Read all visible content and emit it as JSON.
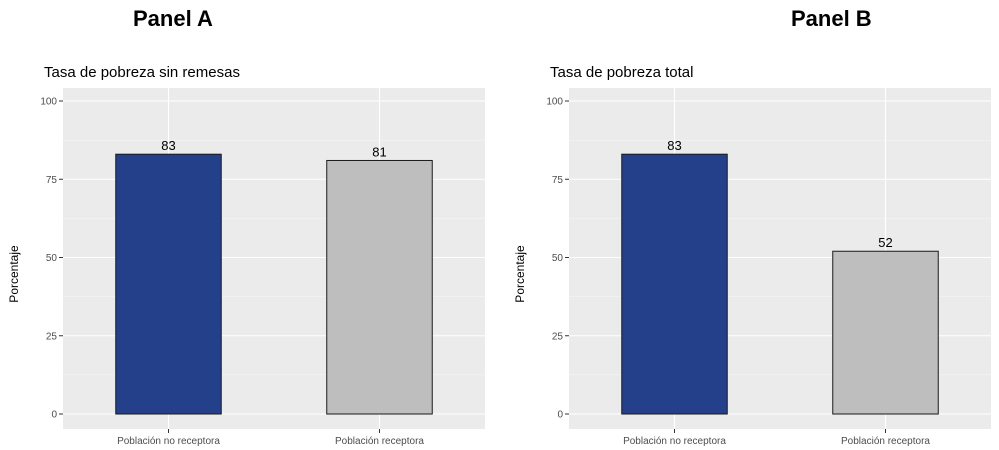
{
  "panels": [
    {
      "heading": "Panel A"
    },
    {
      "heading": "Panel B"
    }
  ],
  "chart_data": [
    {
      "type": "bar",
      "title": "Tasa de pobreza sin remesas",
      "xlabel": "",
      "ylabel": "Porcentaje",
      "categories": [
        "Población no receptora",
        "Población receptora"
      ],
      "values": [
        83,
        81
      ],
      "value_labels": [
        "83",
        "81"
      ],
      "colors": [
        "#25408a",
        "#bebebe"
      ],
      "ylim": [
        0,
        100
      ],
      "yticks": [
        "0",
        "25",
        "50",
        "75",
        "100"
      ],
      "grid": true,
      "panel_background": "#ebebeb"
    },
    {
      "type": "bar",
      "title": "Tasa de pobreza total",
      "xlabel": "",
      "ylabel": "Porcentaje",
      "categories": [
        "Población no receptora",
        "Población receptora"
      ],
      "values": [
        83,
        52
      ],
      "value_labels": [
        "83",
        "52"
      ],
      "colors": [
        "#25408a",
        "#bebebe"
      ],
      "ylim": [
        0,
        100
      ],
      "yticks": [
        "0",
        "25",
        "50",
        "75",
        "100"
      ],
      "grid": true,
      "panel_background": "#ebebeb"
    }
  ]
}
